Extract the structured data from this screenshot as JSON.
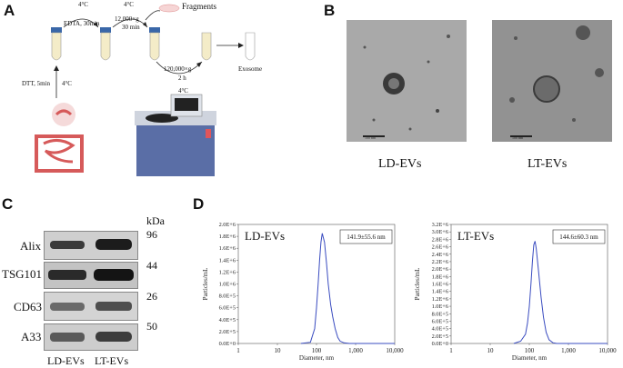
{
  "panels": {
    "A": {
      "letter": "A",
      "step1_temp": "4°C",
      "step1": "EDTA, 30min",
      "step2_temp": "4°C",
      "step2_speed": "12,000×g",
      "step2_time": "30 min",
      "fragments": "Fragments",
      "dtt": "DTT, 5min",
      "dtt_temp": "4°C",
      "ultra_speed": "120,000×g",
      "ultra_time": "2 h",
      "ultra_temp": "4°C",
      "exosome": "Exosome"
    },
    "B": {
      "letter": "B",
      "label_left": "LD-EVs",
      "label_right": "LT-EVs",
      "scale_left": "100 nm",
      "scale_right": "100 nm"
    },
    "C": {
      "letter": "C",
      "kda": "kDa",
      "rows": [
        {
          "protein": "Alix",
          "kda": "96"
        },
        {
          "protein": "TSG101",
          "kda": "44"
        },
        {
          "protein": "CD63",
          "kda": "26"
        },
        {
          "protein": "A33",
          "kda": "50"
        }
      ],
      "lanes": [
        "LD-EVs",
        "LT-EVs"
      ]
    },
    "D": {
      "letter": "D"
    }
  },
  "chart_data": [
    {
      "type": "line",
      "title": "LD-EVs",
      "annotation": "141.9±55.6 nm",
      "xlabel": "Diameter, nm",
      "ylabel": "Particles/mL",
      "xscale": "log",
      "xlim": [
        1,
        10000
      ],
      "x_ticks": [
        "1",
        "10",
        "100",
        "1,000",
        "10,000"
      ],
      "ylim": [
        0,
        2000000
      ],
      "y_ticks": [
        "0.0E+0",
        "2.0E+5",
        "4.0E+5",
        "6.0E+5",
        "8.0E+5",
        "1.0E+6",
        "1.2E+6",
        "1.4E+6",
        "1.6E+6",
        "1.8E+6",
        "2.0E+6"
      ],
      "x": [
        40,
        70,
        90,
        100,
        110,
        120,
        130,
        140,
        160,
        180,
        200,
        230,
        260,
        300,
        350,
        400,
        500,
        700,
        1000,
        10000
      ],
      "y": [
        0,
        20000,
        250000,
        600000,
        1000000,
        1400000,
        1700000,
        1850000,
        1700000,
        1350000,
        1000000,
        650000,
        450000,
        250000,
        100000,
        40000,
        10000,
        0,
        0,
        0
      ]
    },
    {
      "type": "line",
      "title": "LT-EVs",
      "annotation": "144.6±60.3 nm",
      "xlabel": "Diameter, nm",
      "ylabel": "Particles/mL",
      "xscale": "log",
      "xlim": [
        1,
        10000
      ],
      "x_ticks": [
        "1",
        "10",
        "100",
        "1,000",
        "10,000"
      ],
      "ylim": [
        0,
        3200000
      ],
      "y_ticks": [
        "0.0E+0",
        "2.0E+5",
        "4.0E+5",
        "6.0E+5",
        "8.0E+5",
        "1.0E+6",
        "1.2E+6",
        "1.4E+6",
        "1.6E+6",
        "1.8E+6",
        "2.0E+6",
        "2.2E+6",
        "2.4E+6",
        "2.6E+6",
        "2.8E+6",
        "3.0E+6",
        "3.2E+6"
      ],
      "x": [
        40,
        60,
        80,
        90,
        100,
        110,
        120,
        130,
        140,
        150,
        170,
        200,
        230,
        270,
        320,
        400,
        500,
        1000,
        10000
      ],
      "y": [
        0,
        60000,
        250000,
        550000,
        1000000,
        1600000,
        2200000,
        2650000,
        2750000,
        2550000,
        2000000,
        1250000,
        700000,
        300000,
        100000,
        20000,
        0,
        0,
        0
      ]
    }
  ]
}
